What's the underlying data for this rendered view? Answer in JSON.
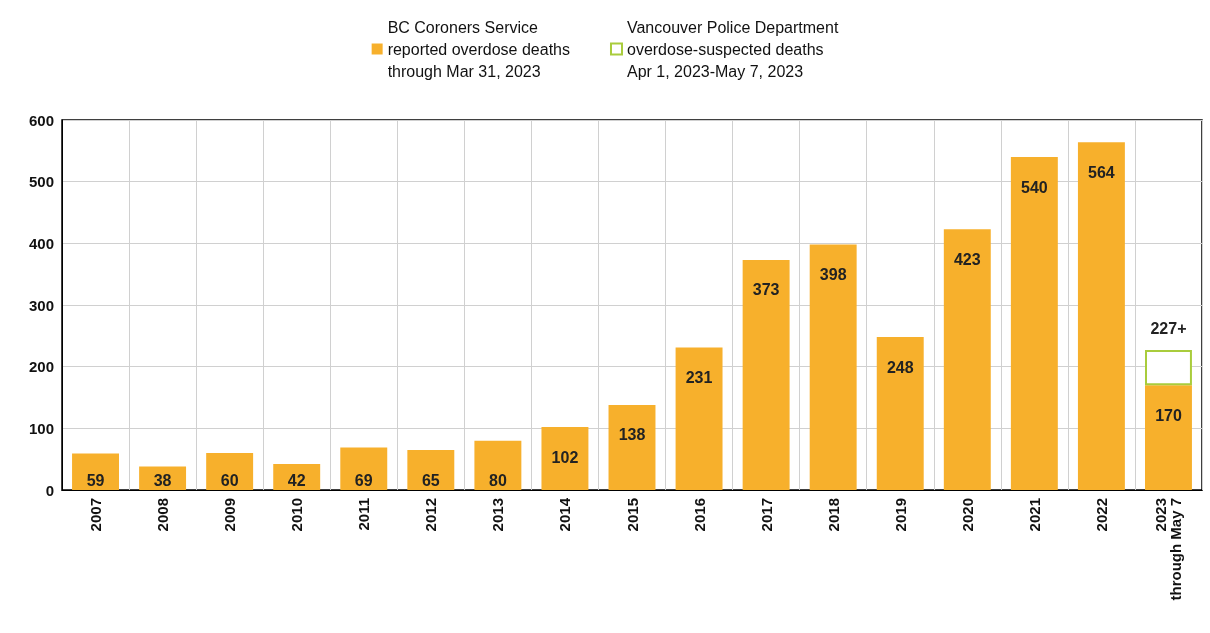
{
  "chart_data": {
    "type": "bar",
    "stacked": true,
    "categories": [
      "2007",
      "2008",
      "2009",
      "2010",
      "2011",
      "2012",
      "2013",
      "2014",
      "2015",
      "2016",
      "2017",
      "2018",
      "2019",
      "2020",
      "2021",
      "2022",
      "2023\nthrough May 7"
    ],
    "series": [
      {
        "name": "BC Coroners Service\nreported overdose deaths\nthrough Mar 31, 2023",
        "color": "#f7b02c",
        "values": [
          59,
          38,
          60,
          42,
          69,
          65,
          80,
          102,
          138,
          231,
          373,
          398,
          248,
          423,
          540,
          564,
          170
        ],
        "value_labels": [
          "59",
          "38",
          "60",
          "42",
          "69",
          "65",
          "80",
          "102",
          "138",
          "231",
          "373",
          "398",
          "248",
          "423",
          "540",
          "564",
          "170"
        ]
      },
      {
        "name": "Vancouver Police Department\noverdose-suspected deaths\nApr 1, 2023-May 7, 2023",
        "color": "#a9cc3c",
        "values": [
          null,
          null,
          null,
          null,
          null,
          null,
          null,
          null,
          null,
          null,
          null,
          null,
          null,
          null,
          null,
          null,
          57
        ]
      }
    ],
    "totals": [
      null,
      null,
      null,
      null,
      null,
      null,
      null,
      null,
      null,
      null,
      null,
      null,
      null,
      null,
      null,
      null,
      "227+"
    ],
    "ylim": [
      0,
      600
    ],
    "yticks": [
      0,
      100,
      200,
      300,
      400,
      500,
      600
    ],
    "grid": true,
    "legend": "top"
  }
}
